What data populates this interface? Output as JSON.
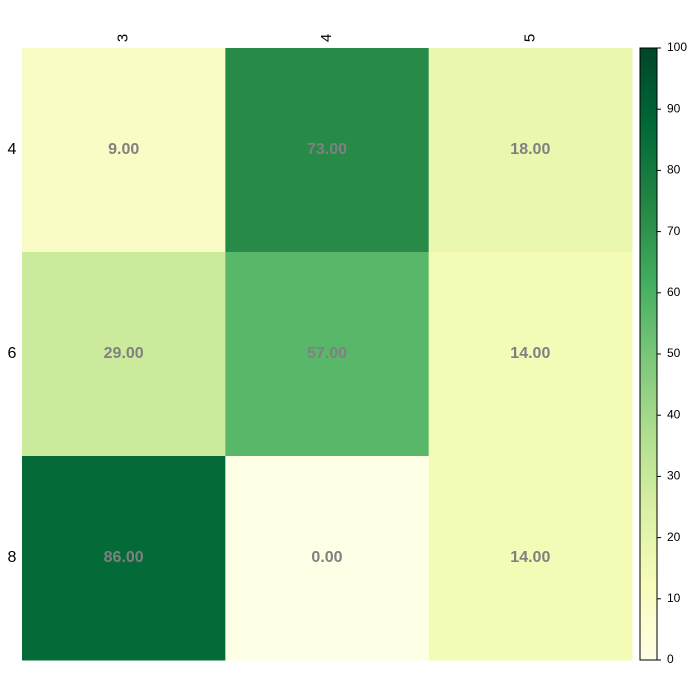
{
  "chart_data": {
    "type": "heatmap",
    "categories": [
      "3",
      "4",
      "5"
    ],
    "y_categories": [
      "4",
      "6",
      "8"
    ],
    "values": [
      [
        9,
        73,
        18
      ],
      [
        29,
        57,
        14
      ],
      [
        86,
        0,
        14
      ]
    ],
    "value_labels": [
      [
        "9.00",
        "73.00",
        "18.00"
      ],
      [
        "29.00",
        "57.00",
        "14.00"
      ],
      [
        "86.00",
        "0.00",
        "14.00"
      ]
    ],
    "colormap": "YlGn",
    "clim": [
      0,
      100
    ],
    "cticks": [
      0,
      10,
      20,
      30,
      40,
      50,
      60,
      70,
      80,
      90,
      100
    ]
  }
}
